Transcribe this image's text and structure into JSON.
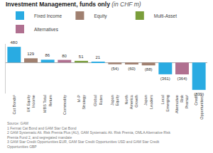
{
  "chart_data": {
    "type": "bar",
    "title": "Investment Management, funds only",
    "subtitle": " (in CHF m)",
    "categories": [
      "Cat Bonds¹",
      "UK Equity Income",
      "MBS Total Return",
      "Commodity",
      "M-P Strategy",
      "Global Rates",
      "Japan Equity",
      "North America Growth",
      "Japan Leaders",
      "Local Emerging",
      "Alternative Risk Premia²",
      "Credit Opportunities³"
    ],
    "series": [
      {
        "name": "Fixed Income",
        "color": "#29abe2",
        "values": [
          480,
          null,
          86,
          null,
          null,
          21,
          null,
          null,
          null,
          -361,
          null,
          -839
        ],
        "value_labels": [
          "480",
          null,
          "86",
          null,
          null,
          "21",
          null,
          null,
          null,
          "(361)",
          null,
          "(839)"
        ]
      },
      {
        "name": "Equity",
        "color": "#a08070",
        "values": [
          null,
          129,
          null,
          null,
          null,
          null,
          -54,
          -60,
          -88,
          null,
          null,
          null
        ],
        "value_labels": [
          null,
          "129",
          null,
          null,
          null,
          null,
          "(54)",
          "(60)",
          "(88)",
          null,
          null,
          null
        ]
      },
      {
        "name": "Multi-Asset",
        "color": "#7a9e3b",
        "values": [
          null,
          null,
          null,
          null,
          51,
          null,
          null,
          null,
          null,
          null,
          null,
          null
        ],
        "value_labels": [
          null,
          null,
          null,
          null,
          "51",
          null,
          null,
          null,
          null,
          null,
          null,
          null
        ]
      },
      {
        "name": "Alternatives",
        "color": "#b07090",
        "values": [
          null,
          null,
          null,
          80,
          null,
          null,
          null,
          null,
          null,
          null,
          -364,
          null
        ],
        "value_labels": [
          null,
          null,
          null,
          "80",
          null,
          null,
          null,
          null,
          null,
          null,
          "(364)",
          null
        ]
      }
    ],
    "ylim": [
      -950,
      570
    ],
    "yticks": [],
    "grid": false,
    "tick_labels": "x",
    "data_labels": true,
    "legend": "top",
    "annotations": [
      "Source: GAM",
      "1 Fermat Cat Bond and GAM Star Cat Bond",
      "2 GAM Systematic Alt. Risk Premia Plus (AU), GAM Systematic Alt. Risk Premia, OMLA Alternative Risk Premia Fund 2, and segregated mandate",
      "3 GAM Star Credit Opportunities EUR, GAM Star Credit Opportunities USD and GAM Star Credit Opportunities GBP"
    ]
  }
}
